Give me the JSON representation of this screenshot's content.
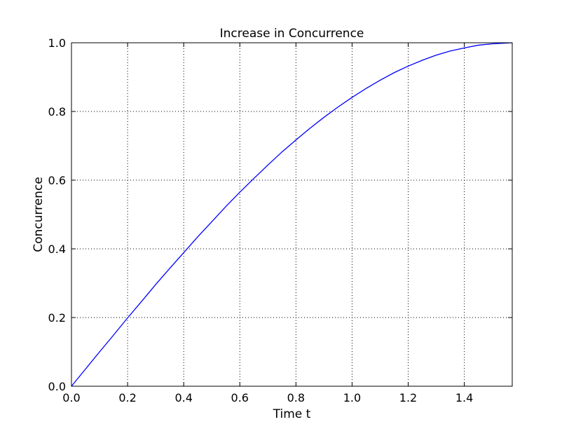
{
  "chart_data": {
    "type": "line",
    "title": "Increase in Concurrence",
    "xlabel": "Time t",
    "ylabel": "Concurrence",
    "xlim": [
      0,
      1.5708
    ],
    "ylim": [
      0,
      1.0
    ],
    "xticks": [
      "0.0",
      "0.2",
      "0.4",
      "0.6",
      "0.8",
      "1.0",
      "1.2",
      "1.4"
    ],
    "yticks": [
      "0.0",
      "0.2",
      "0.4",
      "0.6",
      "0.8",
      "1.0"
    ],
    "grid": true,
    "colors": {
      "line": "#0000ff",
      "grid": "#000000",
      "frame": "#000000"
    },
    "series": [
      {
        "x": [
          0,
          0.05,
          0.1,
          0.15,
          0.2,
          0.25,
          0.3,
          0.35,
          0.4,
          0.45,
          0.5,
          0.55,
          0.6,
          0.65,
          0.7,
          0.75,
          0.8,
          0.85,
          0.9,
          0.95,
          1.0,
          1.05,
          1.1,
          1.15,
          1.2,
          1.25,
          1.3,
          1.35,
          1.4,
          1.45,
          1.5,
          1.5708
        ],
        "y": [
          0.0,
          0.05,
          0.1,
          0.149,
          0.199,
          0.247,
          0.296,
          0.343,
          0.389,
          0.435,
          0.479,
          0.523,
          0.565,
          0.605,
          0.644,
          0.682,
          0.717,
          0.751,
          0.783,
          0.813,
          0.841,
          0.867,
          0.891,
          0.913,
          0.932,
          0.949,
          0.964,
          0.976,
          0.985,
          0.993,
          0.997,
          1.0
        ]
      }
    ]
  }
}
